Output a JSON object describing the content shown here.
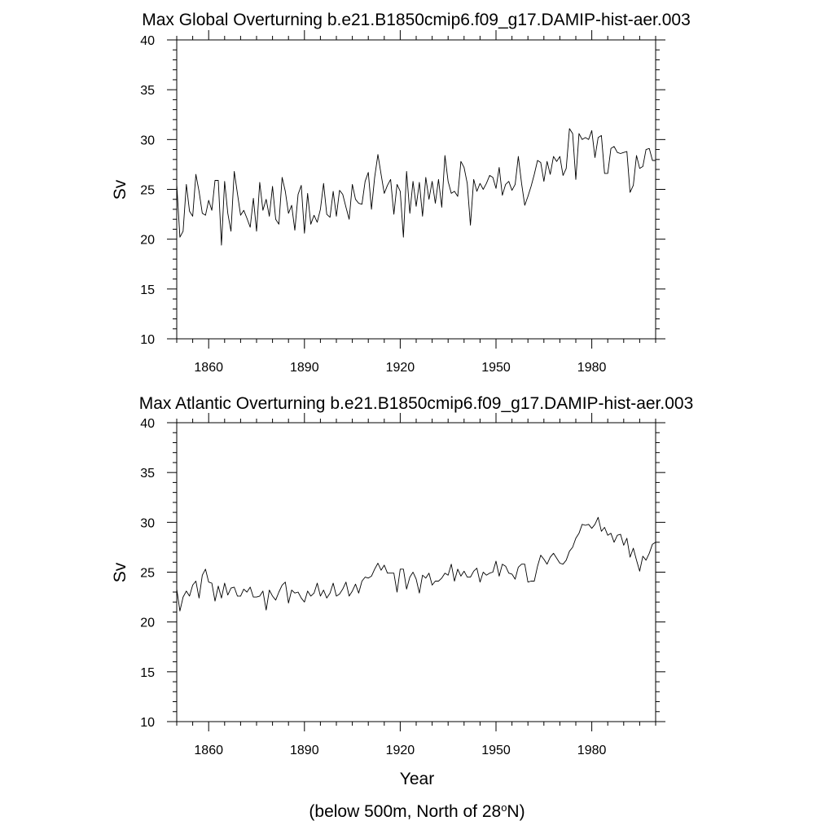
{
  "figure": {
    "xlabel": "Year",
    "footnote_prefix": "(below 500m, North of 28",
    "footnote_sup": "o",
    "footnote_suffix": "N)"
  },
  "chart_data": [
    {
      "type": "line",
      "title": "Max Global Overturning b.e21.B1850cmip6.f09_g17.DAMIP-hist-aer.003",
      "xlabel": "",
      "ylabel": "Sv",
      "xlim": [
        1850,
        2000
      ],
      "ylim": [
        10,
        40
      ],
      "xticks": [
        1860,
        1890,
        1920,
        1950,
        1980
      ],
      "xtick_labels": [
        "1860",
        "1890",
        "1920",
        "1950",
        "1980"
      ],
      "yticks": [
        10,
        15,
        20,
        25,
        30,
        35,
        40
      ],
      "ytick_labels": [
        "10",
        "15",
        "20",
        "25",
        "30",
        "35",
        "40"
      ],
      "grid": false,
      "line_color": "#000000",
      "series": [
        {
          "x": [
            1850,
            1851,
            1852,
            1853,
            1854,
            1855,
            1856,
            1857,
            1858,
            1859,
            1860,
            1861,
            1862,
            1863,
            1864,
            1865,
            1866,
            1867,
            1868,
            1869,
            1870,
            1871,
            1872,
            1873,
            1874,
            1875,
            1876,
            1877,
            1878,
            1879,
            1880,
            1881,
            1882,
            1883,
            1884,
            1885,
            1886,
            1887,
            1888,
            1889,
            1890,
            1891,
            1892,
            1893,
            1894,
            1895,
            1896,
            1897,
            1898,
            1899,
            1900,
            1901,
            1902,
            1903,
            1904,
            1905,
            1906,
            1907,
            1908,
            1909,
            1910,
            1911,
            1912,
            1913,
            1914,
            1915,
            1916,
            1917,
            1918,
            1919,
            1920,
            1921,
            1922,
            1923,
            1924,
            1925,
            1926,
            1927,
            1928,
            1929,
            1930,
            1931,
            1932,
            1933,
            1934,
            1935,
            1936,
            1937,
            1938,
            1939,
            1940,
            1941,
            1942,
            1943,
            1944,
            1945,
            1946,
            1947,
            1948,
            1949,
            1950,
            1951,
            1952,
            1953,
            1954,
            1955,
            1956,
            1957,
            1958,
            1959,
            1960,
            1961,
            1962,
            1963,
            1964,
            1965,
            1966,
            1967,
            1968,
            1969,
            1970,
            1971,
            1972,
            1973,
            1974,
            1975,
            1976,
            1977,
            1978,
            1979,
            1980,
            1981,
            1982,
            1983,
            1984,
            1985,
            1986,
            1987,
            1988,
            1989,
            1990,
            1991,
            1992,
            1993,
            1994,
            1995,
            1996,
            1997,
            1998,
            1999,
            2000
          ],
          "y": [
            25.5,
            20.2,
            20.8,
            25.5,
            22.8,
            22.3,
            26.5,
            24.8,
            22.6,
            22.4,
            23.9,
            22.9,
            25.9,
            25.9,
            19.4,
            25.8,
            22.6,
            20.8,
            26.8,
            24.6,
            22.4,
            22.9,
            22.1,
            21.2,
            24.1,
            20.8,
            25.7,
            22.9,
            24.0,
            22.3,
            25.3,
            22.0,
            21.5,
            26.2,
            24.8,
            22.6,
            23.4,
            20.9,
            24.5,
            25.4,
            20.6,
            24.6,
            21.5,
            22.4,
            21.7,
            23.0,
            25.6,
            22.5,
            22.2,
            24.8,
            22.3,
            24.9,
            24.5,
            23.2,
            22.0,
            25.5,
            24.0,
            23.6,
            23.5,
            25.8,
            26.7,
            23.0,
            26.2,
            28.5,
            26.5,
            24.6,
            25.4,
            26.0,
            22.5,
            25.5,
            24.8,
            20.2,
            26.8,
            22.6,
            25.8,
            23.3,
            25.7,
            22.3,
            26.2,
            24.0,
            25.8,
            23.6,
            26.0,
            23.2,
            28.4,
            25.8,
            24.6,
            24.8,
            24.3,
            27.8,
            27.2,
            25.6,
            21.4,
            26.0,
            24.8,
            25.6,
            25.0,
            25.6,
            26.4,
            26.2,
            25.1,
            27.2,
            24.4,
            25.5,
            25.8,
            24.9,
            25.5,
            28.3,
            25.6,
            23.4,
            24.3,
            25.3,
            26.5,
            27.9,
            27.7,
            25.8,
            27.8,
            26.5,
            28.3,
            27.8,
            28.3,
            26.4,
            27.1,
            31.1,
            30.6,
            26.0,
            30.6,
            30.0,
            30.2,
            30.0,
            30.9,
            28.2,
            30.2,
            30.4,
            26.6,
            26.6,
            29.1,
            29.3,
            28.7,
            28.6,
            28.7,
            28.8,
            24.7,
            25.4,
            28.4,
            27.1,
            27.3,
            29.0,
            29.1,
            27.9,
            27.9
          ]
        }
      ]
    },
    {
      "type": "line",
      "title": "Max Atlantic Overturning b.e21.B1850cmip6.f09_g17.DAMIP-hist-aer.003",
      "xlabel": "Year",
      "ylabel": "Sv",
      "xlim": [
        1850,
        2000
      ],
      "ylim": [
        10,
        40
      ],
      "xticks": [
        1860,
        1890,
        1920,
        1950,
        1980
      ],
      "xtick_labels": [
        "1860",
        "1890",
        "1920",
        "1950",
        "1980"
      ],
      "yticks": [
        10,
        15,
        20,
        25,
        30,
        35,
        40
      ],
      "ytick_labels": [
        "10",
        "15",
        "20",
        "25",
        "30",
        "35",
        "40"
      ],
      "grid": false,
      "line_color": "#000000",
      "series": [
        {
          "x": [
            1850,
            1851,
            1852,
            1853,
            1854,
            1855,
            1856,
            1857,
            1858,
            1859,
            1860,
            1861,
            1862,
            1863,
            1864,
            1865,
            1866,
            1867,
            1868,
            1869,
            1870,
            1871,
            1872,
            1873,
            1874,
            1875,
            1876,
            1877,
            1878,
            1879,
            1880,
            1881,
            1882,
            1883,
            1884,
            1885,
            1886,
            1887,
            1888,
            1889,
            1890,
            1891,
            1892,
            1893,
            1894,
            1895,
            1896,
            1897,
            1898,
            1899,
            1900,
            1901,
            1902,
            1903,
            1904,
            1905,
            1906,
            1907,
            1908,
            1909,
            1910,
            1911,
            1912,
            1913,
            1914,
            1915,
            1916,
            1917,
            1918,
            1919,
            1920,
            1921,
            1922,
            1923,
            1924,
            1925,
            1926,
            1927,
            1928,
            1929,
            1930,
            1931,
            1932,
            1933,
            1934,
            1935,
            1936,
            1937,
            1938,
            1939,
            1940,
            1941,
            1942,
            1943,
            1944,
            1945,
            1946,
            1947,
            1948,
            1949,
            1950,
            1951,
            1952,
            1953,
            1954,
            1955,
            1956,
            1957,
            1958,
            1959,
            1960,
            1961,
            1962,
            1963,
            1964,
            1965,
            1966,
            1967,
            1968,
            1969,
            1970,
            1971,
            1972,
            1973,
            1974,
            1975,
            1976,
            1977,
            1978,
            1979,
            1980,
            1981,
            1982,
            1983,
            1984,
            1985,
            1986,
            1987,
            1988,
            1989,
            1990,
            1991,
            1992,
            1993,
            1994,
            1995,
            1996,
            1997,
            1998,
            1999,
            2000
          ],
          "y": [
            23.3,
            21.1,
            22.5,
            23.1,
            22.6,
            23.7,
            24.1,
            22.4,
            24.7,
            25.3,
            24.0,
            23.9,
            22.1,
            23.6,
            22.4,
            23.9,
            22.7,
            23.4,
            23.5,
            22.6,
            22.6,
            23.3,
            23.0,
            23.5,
            22.5,
            22.5,
            22.6,
            23.1,
            21.2,
            23.2,
            22.6,
            22.2,
            23.0,
            23.7,
            24.0,
            21.9,
            23.2,
            22.9,
            23.0,
            22.4,
            22.0,
            23.1,
            22.6,
            22.9,
            23.9,
            22.6,
            23.2,
            22.4,
            22.9,
            23.9,
            22.6,
            22.8,
            23.3,
            24.0,
            22.6,
            23.1,
            23.8,
            22.9,
            24.1,
            24.5,
            24.4,
            24.6,
            25.3,
            25.9,
            25.2,
            25.7,
            24.9,
            24.9,
            24.9,
            23.0,
            25.3,
            25.3,
            23.3,
            24.5,
            25.0,
            24.3,
            22.9,
            24.7,
            24.4,
            24.9,
            23.7,
            24.1,
            24.1,
            24.4,
            24.9,
            24.7,
            25.8,
            24.1,
            25.3,
            24.6,
            25.1,
            24.5,
            24.5,
            25.1,
            25.4,
            24.0,
            25.0,
            24.7,
            24.9,
            25.0,
            26.1,
            24.6,
            25.8,
            25.6,
            24.9,
            24.8,
            24.3,
            25.5,
            25.8,
            25.8,
            24.0,
            24.1,
            24.1,
            25.6,
            26.7,
            26.3,
            25.8,
            26.5,
            26.9,
            26.4,
            25.9,
            25.8,
            26.2,
            27.1,
            27.5,
            28.4,
            28.9,
            29.8,
            29.7,
            29.8,
            29.4,
            29.8,
            30.5,
            29.1,
            29.5,
            28.7,
            28.9,
            28.0,
            28.7,
            28.8,
            27.7,
            28.4,
            26.5,
            27.4,
            26.2,
            25.1,
            26.6,
            26.2,
            26.9,
            27.8,
            28.0
          ]
        }
      ]
    }
  ]
}
